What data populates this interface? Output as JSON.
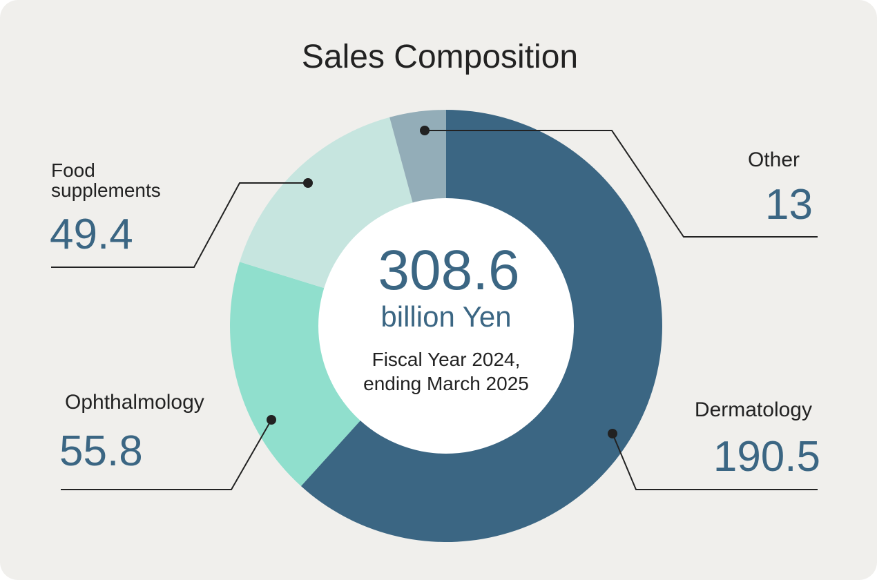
{
  "chart_data": {
    "type": "pie",
    "variant": "donut",
    "title": "Sales Composition",
    "center": {
      "total": "308.6",
      "unit": "billion Yen",
      "period_line1": "Fiscal Year 2024,",
      "period_line2": "ending March 2025"
    },
    "slices": [
      {
        "label": "Dermatology",
        "label_lines": [
          "Dermatology"
        ],
        "value": 190.5,
        "display_value": "190.5",
        "color": "#3b6683"
      },
      {
        "label": "Ophthalmology",
        "label_lines": [
          "Ophthalmology"
        ],
        "value": 55.8,
        "display_value": "55.8",
        "color": "#90dfcd"
      },
      {
        "label": "Food supplements",
        "label_lines": [
          "Food",
          "supplements"
        ],
        "value": 49.4,
        "display_value": "49.4",
        "color": "#c6e5df"
      },
      {
        "label": "Other",
        "label_lines": [
          "Other"
        ],
        "value": 13,
        "display_value": "13",
        "color": "#93adb8"
      }
    ],
    "colors": {
      "background": "#f0efec",
      "title_text": "#222222",
      "value_text": "#3b6683",
      "label_text": "#222222",
      "leader_line": "#222222",
      "center_fill": "#ffffff"
    }
  }
}
